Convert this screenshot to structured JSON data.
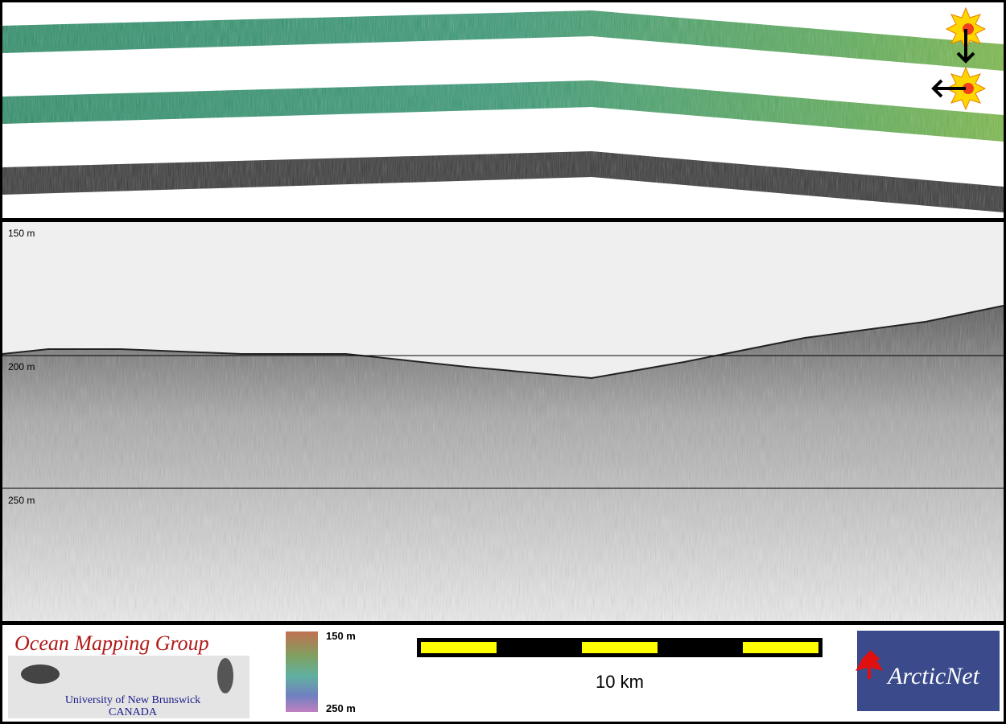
{
  "profile": {
    "depth_labels": [
      "150 m",
      "200 m",
      "250 m"
    ]
  },
  "legend": {
    "colorbar_top": "150 m",
    "colorbar_bottom": "250 m",
    "scale_label": "10 km"
  },
  "logos": {
    "group_name": "Ocean Mapping Group",
    "university": "University of New Brunswick",
    "country": "CANADA",
    "partner": "ArcticNet"
  }
}
